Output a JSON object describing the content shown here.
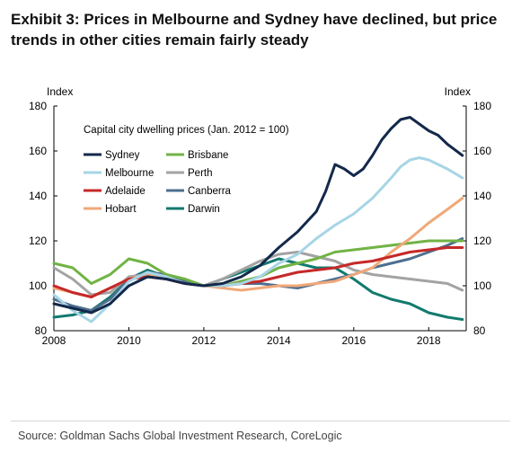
{
  "title": "Exhibit 3: Prices in Melbourne and Sydney have declined, but price trends in other cities remain fairly steady",
  "source": "Source: Goldman Sachs Global Investment Research, CoreLogic",
  "chart_data": {
    "type": "line",
    "subtitle": "Capital city dwelling prices (Jan. 2012 = 100)",
    "ylabel_left": "Index",
    "ylabel_right": "Index",
    "xlim": [
      2008,
      2019
    ],
    "ylim": [
      80,
      180
    ],
    "x_ticks": [
      2008,
      2010,
      2012,
      2014,
      2016,
      2018
    ],
    "y_ticks": [
      80,
      100,
      120,
      140,
      160,
      180
    ],
    "legend_position": "top-left",
    "series": [
      {
        "name": "Sydney",
        "color": "#13294b",
        "points": [
          [
            2008,
            92
          ],
          [
            2008.5,
            90
          ],
          [
            2009,
            88
          ],
          [
            2009.5,
            92
          ],
          [
            2010,
            100
          ],
          [
            2010.5,
            104
          ],
          [
            2011,
            103
          ],
          [
            2011.5,
            101
          ],
          [
            2012,
            100
          ],
          [
            2012.5,
            101
          ],
          [
            2013,
            104
          ],
          [
            2013.5,
            109
          ],
          [
            2014,
            117
          ],
          [
            2014.5,
            124
          ],
          [
            2015,
            133
          ],
          [
            2015.25,
            142
          ],
          [
            2015.5,
            154
          ],
          [
            2015.75,
            152
          ],
          [
            2016,
            149
          ],
          [
            2016.25,
            152
          ],
          [
            2016.5,
            158
          ],
          [
            2016.75,
            165
          ],
          [
            2017,
            170
          ],
          [
            2017.25,
            174
          ],
          [
            2017.5,
            175
          ],
          [
            2017.75,
            172
          ],
          [
            2018,
            169
          ],
          [
            2018.25,
            167
          ],
          [
            2018.5,
            163
          ],
          [
            2018.9,
            158
          ]
        ]
      },
      {
        "name": "Melbourne",
        "color": "#a7d5e6",
        "points": [
          [
            2008,
            96
          ],
          [
            2008.5,
            89
          ],
          [
            2009,
            84
          ],
          [
            2009.5,
            92
          ],
          [
            2010,
            102
          ],
          [
            2010.5,
            106
          ],
          [
            2011,
            104
          ],
          [
            2011.5,
            101
          ],
          [
            2012,
            100
          ],
          [
            2012.5,
            100
          ],
          [
            2013,
            101
          ],
          [
            2013.5,
            104
          ],
          [
            2014,
            110
          ],
          [
            2014.5,
            114
          ],
          [
            2015,
            121
          ],
          [
            2015.5,
            127
          ],
          [
            2016,
            132
          ],
          [
            2016.5,
            139
          ],
          [
            2017,
            148
          ],
          [
            2017.25,
            153
          ],
          [
            2017.5,
            156
          ],
          [
            2017.75,
            157
          ],
          [
            2018,
            156
          ],
          [
            2018.5,
            152
          ],
          [
            2018.9,
            148
          ]
        ]
      },
      {
        "name": "Adelaide",
        "color": "#c62828",
        "points": [
          [
            2008,
            100
          ],
          [
            2008.5,
            97
          ],
          [
            2009,
            95
          ],
          [
            2009.5,
            99
          ],
          [
            2010,
            103
          ],
          [
            2010.5,
            104
          ],
          [
            2011,
            103
          ],
          [
            2011.5,
            101
          ],
          [
            2012,
            100
          ],
          [
            2012.5,
            100
          ],
          [
            2013,
            101
          ],
          [
            2013.5,
            102
          ],
          [
            2014,
            104
          ],
          [
            2014.5,
            106
          ],
          [
            2015,
            107
          ],
          [
            2015.5,
            108
          ],
          [
            2016,
            110
          ],
          [
            2016.5,
            111
          ],
          [
            2017,
            113
          ],
          [
            2017.5,
            115
          ],
          [
            2018,
            116
          ],
          [
            2018.5,
            117
          ],
          [
            2018.9,
            117
          ]
        ]
      },
      {
        "name": "Hobart",
        "color": "#f0a878",
        "points": [
          [
            2008,
            99
          ],
          [
            2008.5,
            97
          ],
          [
            2009,
            95
          ],
          [
            2009.5,
            99
          ],
          [
            2010,
            103
          ],
          [
            2010.5,
            105
          ],
          [
            2011,
            103
          ],
          [
            2011.5,
            101
          ],
          [
            2012,
            100
          ],
          [
            2012.5,
            99
          ],
          [
            2013,
            98
          ],
          [
            2013.5,
            99
          ],
          [
            2014,
            100
          ],
          [
            2014.5,
            100
          ],
          [
            2015,
            101
          ],
          [
            2015.5,
            102
          ],
          [
            2016,
            105
          ],
          [
            2016.5,
            108
          ],
          [
            2017,
            115
          ],
          [
            2017.5,
            121
          ],
          [
            2018,
            128
          ],
          [
            2018.5,
            134
          ],
          [
            2018.9,
            139
          ]
        ]
      },
      {
        "name": "Brisbane",
        "color": "#71b344",
        "points": [
          [
            2008,
            110
          ],
          [
            2008.5,
            108
          ],
          [
            2009,
            101
          ],
          [
            2009.5,
            105
          ],
          [
            2010,
            112
          ],
          [
            2010.5,
            110
          ],
          [
            2011,
            105
          ],
          [
            2011.5,
            103
          ],
          [
            2012,
            100
          ],
          [
            2012.5,
            100
          ],
          [
            2013,
            102
          ],
          [
            2013.5,
            104
          ],
          [
            2014,
            108
          ],
          [
            2014.5,
            110
          ],
          [
            2015,
            112
          ],
          [
            2015.5,
            115
          ],
          [
            2016,
            116
          ],
          [
            2016.5,
            117
          ],
          [
            2017,
            118
          ],
          [
            2017.5,
            119
          ],
          [
            2018,
            120
          ],
          [
            2018.5,
            120
          ],
          [
            2018.9,
            120
          ]
        ]
      },
      {
        "name": "Perth",
        "color": "#a3a3a3",
        "points": [
          [
            2008,
            108
          ],
          [
            2008.5,
            103
          ],
          [
            2009,
            96
          ],
          [
            2009.5,
            97
          ],
          [
            2010,
            104
          ],
          [
            2010.5,
            105
          ],
          [
            2011,
            104
          ],
          [
            2011.5,
            101
          ],
          [
            2012,
            100
          ],
          [
            2012.5,
            103
          ],
          [
            2013,
            107
          ],
          [
            2013.5,
            111
          ],
          [
            2014,
            114
          ],
          [
            2014.5,
            115
          ],
          [
            2015,
            113
          ],
          [
            2015.5,
            111
          ],
          [
            2016,
            107
          ],
          [
            2016.5,
            105
          ],
          [
            2017,
            104
          ],
          [
            2017.5,
            103
          ],
          [
            2018,
            102
          ],
          [
            2018.5,
            101
          ],
          [
            2018.9,
            98
          ]
        ]
      },
      {
        "name": "Canberra",
        "color": "#4d6f8f",
        "points": [
          [
            2008,
            94
          ],
          [
            2008.5,
            91
          ],
          [
            2009,
            89
          ],
          [
            2009.5,
            94
          ],
          [
            2010,
            103
          ],
          [
            2010.5,
            106
          ],
          [
            2011,
            105
          ],
          [
            2011.5,
            102
          ],
          [
            2012,
            100
          ],
          [
            2012.5,
            100
          ],
          [
            2013,
            101
          ],
          [
            2013.5,
            101
          ],
          [
            2014,
            100
          ],
          [
            2014.5,
            99
          ],
          [
            2015,
            101
          ],
          [
            2015.5,
            103
          ],
          [
            2016,
            105
          ],
          [
            2016.5,
            108
          ],
          [
            2017,
            110
          ],
          [
            2017.5,
            112
          ],
          [
            2018,
            115
          ],
          [
            2018.5,
            118
          ],
          [
            2018.9,
            121
          ]
        ]
      },
      {
        "name": "Darwin",
        "color": "#127a6e",
        "points": [
          [
            2008,
            86
          ],
          [
            2008.5,
            87
          ],
          [
            2009,
            89
          ],
          [
            2009.5,
            95
          ],
          [
            2010,
            103
          ],
          [
            2010.5,
            107
          ],
          [
            2011,
            104
          ],
          [
            2011.5,
            102
          ],
          [
            2012,
            100
          ],
          [
            2012.5,
            103
          ],
          [
            2013,
            106
          ],
          [
            2013.5,
            109
          ],
          [
            2014,
            112
          ],
          [
            2014.5,
            110
          ],
          [
            2015,
            108
          ],
          [
            2015.5,
            108
          ],
          [
            2016,
            103
          ],
          [
            2016.5,
            97
          ],
          [
            2017,
            94
          ],
          [
            2017.5,
            92
          ],
          [
            2018,
            88
          ],
          [
            2018.5,
            86
          ],
          [
            2018.9,
            85
          ]
        ]
      }
    ]
  }
}
